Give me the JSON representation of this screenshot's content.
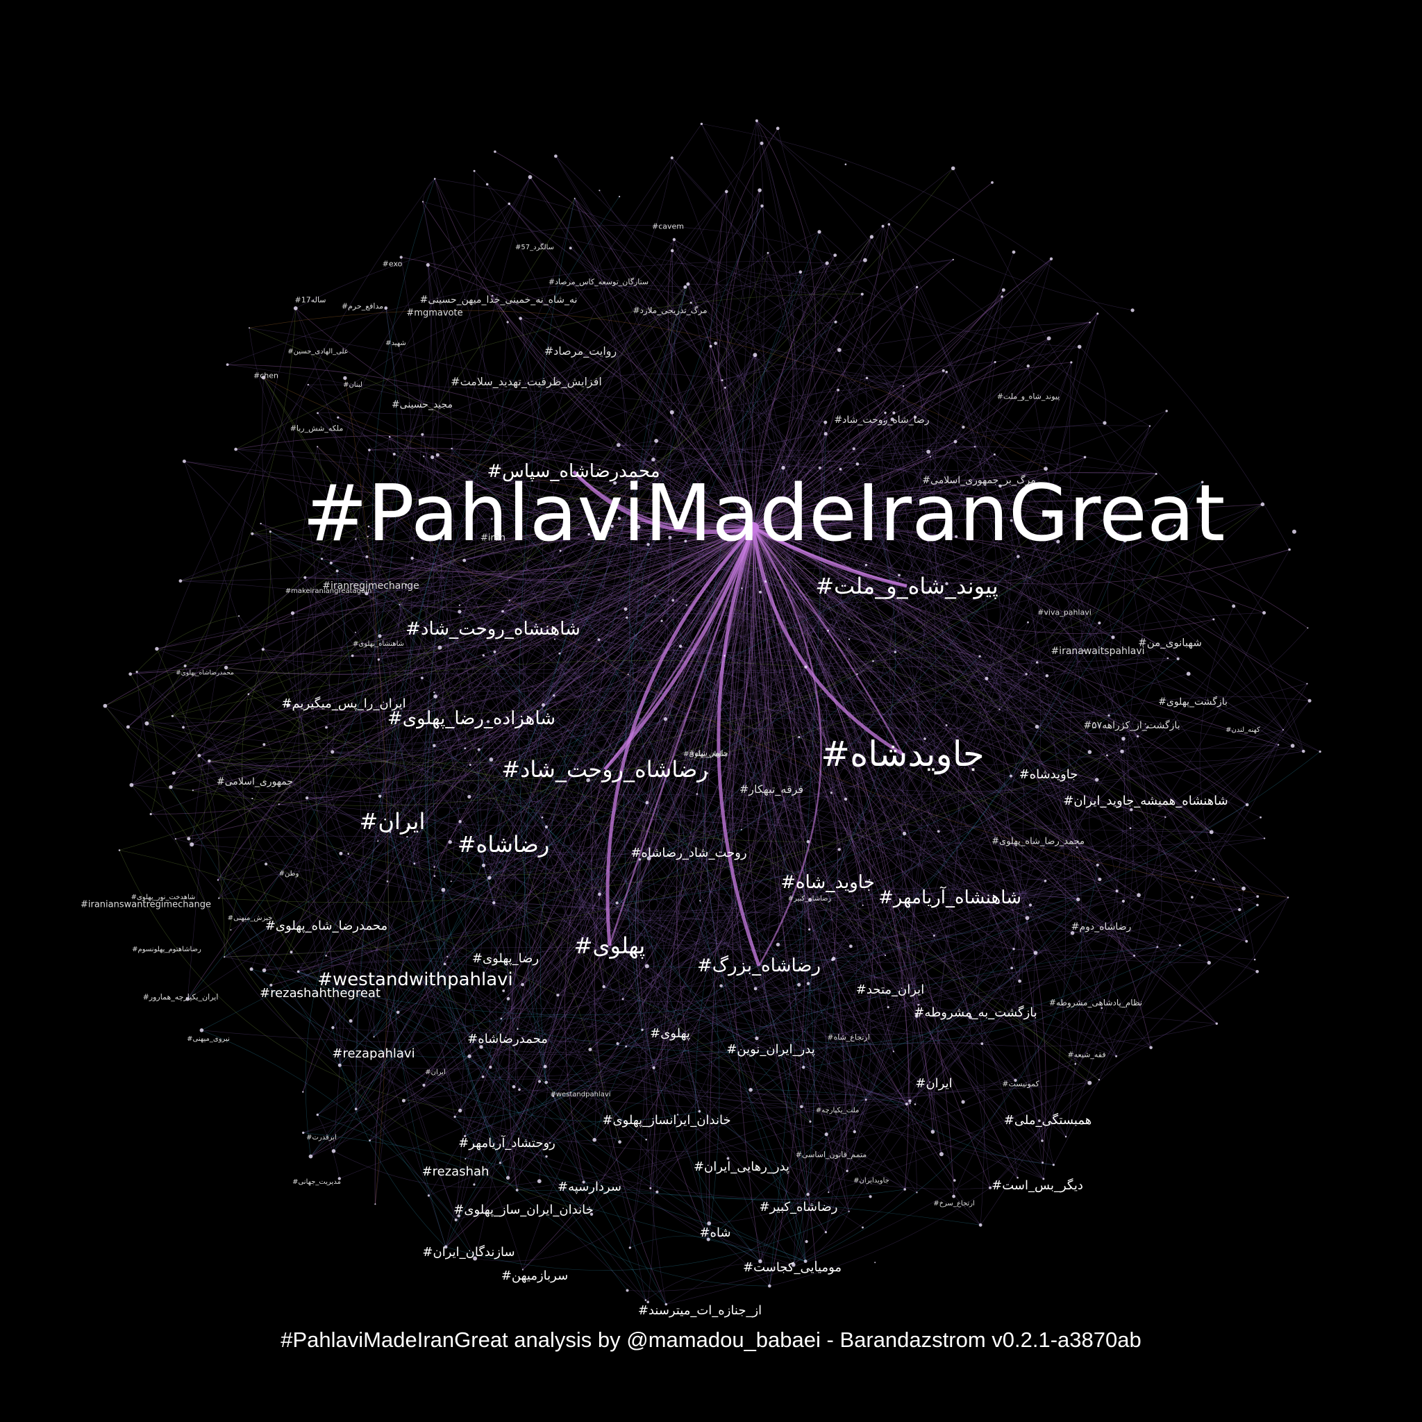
{
  "colors": {
    "background": "#000000",
    "edge_primary": "#c77be0",
    "edge_secondary": "#7a5aa8",
    "edge_teal": "#3aa6c9",
    "edge_green": "#8fb84a",
    "edge_orange": "#d98a3a",
    "label": "#ffffff"
  },
  "footer": "#PahlaviMadeIranGreat analysis by @mamadou_babaei - Barandazstrom v0.2.1-a3870ab",
  "labels": {
    "main": "#PahlaviMadeIranGreat",
    "l02": "#جاویدشاه",
    "l03": "#رضاشاه_روحت_شاد",
    "l04": "#پیوند_شاه_و_ملت",
    "l05": "#شاهزاده_رضا_پهلوی",
    "l06": "#شاهنشاه_روحت_شاد",
    "l07": "#محمدرضاشاه_سپاس",
    "l08": "#ایران",
    "l09": "#رضاشاه",
    "l10": "#پهلوی",
    "l11": "#رضاشاه_بزرگ",
    "l12": "#جاوید_شاه",
    "l13": "#شاهنشاه_آریامهر",
    "l14": "#westandwithpahlavi",
    "l15": "#روحت_شاد_رضاشاه",
    "l16": "#پدر_ایران_نوین",
    "l17": "#محمدرضاشاه",
    "l18": "#ایران_متحد",
    "l19": "#بازگشت_به_مشروطه",
    "l20": "#شاهنشاه_همیشه_جاوید_ایران",
    "l21": "#جاویدشاه",
    "l22": "#شاه",
    "l23": "#سردارسپه",
    "l24": "#rezashah",
    "l25": "#rezapahlavi",
    "l26": "#rezashahthegreat",
    "l27": "#ایران",
    "l28": "#پهلوی",
    "l29": "#خاندان_ایرانساز_پهلوی",
    "l30": "#روحتشاد_آریامهر",
    "l31": "#خاندان_ایران_ساز_پهلوی",
    "l32": "#سازندگان_ایران",
    "l33": "#سربازمیهن",
    "l34": "#مومیایی_کجاست",
    "l35": "#رضاشاه_کبیر",
    "l36": "#پدر_رهایی_ایران",
    "l37": "#دیگر_بس_است",
    "l38": "#همبستگی_ملی",
    "l39": "#از_جنازه_ات_میترسند",
    "l40": "#رضا_پهلوی",
    "l41": "#محمدرضا_شاه_پهلوی",
    "l42": "#ایران_را_پس_میگیریم",
    "l43": "#iranregimechange",
    "l44": "#iranawaitspahlavi",
    "l45": "#شهبانوی_من",
    "l46": "#بازگشت_پهلوی",
    "l47": "#بازگشت_از_کژراهه۵۷",
    "l48": "#رضاشاه_دوم",
    "l49": "#محمد_رضا_شاه_پهلوی",
    "l50": "#فرقه_تبهکار",
    "l51": "#روایت_مرصاد",
    "l52": "#افزایش_ظرفیت_تهدید_سلامت",
    "l53": "#رضا_شاه_روحت_شاد",
    "l54": "#مرگ_بر_جمهوری_اسلامی",
    "l55": "#جمهوری_اسلامی",
    "l56": "#iranianswantregimechange",
    "l57": "#نه_شاه_نه_خمینی_خدا_میهن_حسینی",
    "l58": "#mgmavote",
    "l59": "#مجید_حسینی",
    "l60": "#cavem",
    "l61": "#exo",
    "l62": "#viva_pahlavi",
    "l63": "#نظام_پادشاهی_مشروطه",
    "l64": "#ستارگان_توسعه_کاس_مرصاد",
    "l65": "#مرگ_تدریجی_ملارد",
    "l66": "#سالگرد_57",
    "l67": "#ساله17",
    "l68": "#مدافع_حرم",
    "l69": "#شهید",
    "l70": "#علی_الهادی_حسین",
    "l71": "#chen",
    "l72": "#لبنان",
    "l73": "#ملکه_شش_ربا",
    "l74": "#پیوند_شاه_و_ملت",
    "l75": "#ایران_یکپارچه_همارور",
    "l76": "#نیروی_میهنی",
    "l77": "#ابرقدرت",
    "l78": "#مدیریت_جهانی",
    "l79": "#ایران",
    "l80": "#وطن",
    "l81": "#شاهدخت_نور_پهلوی",
    "l82": "#خیزش_میهنی",
    "l83": "#رضاشاهتوم_پهلونسوم",
    "l84": "#محمدرضاشاه_پهلوی",
    "l85": "#شاهنشاه_پهلوی",
    "l86": "#جاوید_شاه",
    "l87": "#makeiraniangreatagain",
    "l88": "#iran",
    "l89": "#فقه_شیعه",
    "l90": "#کمونیست",
    "l91": "#ارتجاع_سرخ",
    "l92": "#جاویدایران",
    "l93": "#متمم_قانون_اساسی",
    "l94": "#ملت_یکپارچه",
    "l95": "#ارتجاع_شاه",
    "l96": "#westandpahlavi",
    "l97": "#کهنه_لندن",
    "l98": "#شاهان_پهلوی",
    "l99": "#رضاشاه_کبیر"
  }
}
